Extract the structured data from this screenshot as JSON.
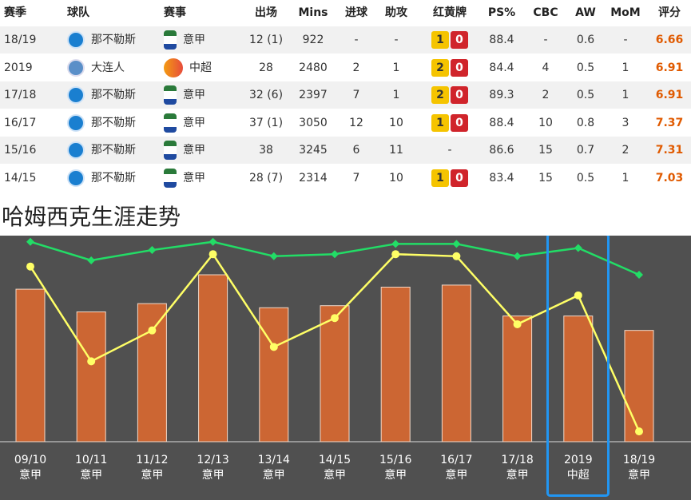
{
  "table": {
    "header": [
      "赛季",
      "球队",
      "赛事",
      "出场",
      "Mins",
      "进球",
      "助攻",
      "红黄牌",
      "PS%",
      "CBC",
      "AW",
      "MoM",
      "评分"
    ],
    "rows": [
      [
        "18/19",
        "那不勒斯",
        "意甲",
        "12 (1)",
        922,
        "-",
        "-",
        [
          1,
          0
        ],
        88.4,
        "-",
        0.6,
        "-",
        6.66
      ],
      [
        "2019",
        "大连人",
        "中超",
        28,
        2480,
        2,
        1,
        [
          2,
          0
        ],
        84.4,
        4,
        0.5,
        1,
        6.91
      ],
      [
        "17/18",
        "那不勒斯",
        "意甲",
        "32 (6)",
        2397,
        7,
        1,
        [
          2,
          0
        ],
        89.3,
        2,
        0.5,
        1,
        6.91
      ],
      [
        "16/17",
        "那不勒斯",
        "意甲",
        "37 (1)",
        3050,
        12,
        10,
        [
          1,
          0
        ],
        88.4,
        10,
        0.8,
        3,
        7.37
      ],
      [
        "15/16",
        "那不勒斯",
        "意甲",
        38,
        3245,
        6,
        11,
        "-",
        86.6,
        15,
        0.7,
        2,
        7.31
      ],
      [
        "14/15",
        "那不勒斯",
        "意甲",
        "28 (7)",
        2314,
        7,
        10,
        [
          1,
          0
        ],
        83.4,
        15,
        0.5,
        1,
        7.03
      ]
    ]
  },
  "chart_data": {
    "type": "bar-line",
    "title": "哈姆西克生涯走势",
    "categories": [
      "09/10",
      "10/11",
      "11/12",
      "12/13",
      "13/14",
      "14/15",
      "15/16",
      "16/17",
      "17/18",
      "2019",
      "18/19"
    ],
    "subcategories": [
      "意甲",
      "意甲",
      "意甲",
      "意甲",
      "意甲",
      "意甲",
      "意甲",
      "意甲",
      "意甲",
      "中超",
      "意甲"
    ],
    "ylim": [
      0,
      100
    ],
    "series": [
      {
        "type": "bar",
        "color": "#cc6633",
        "values": [
          74,
          63,
          67,
          81,
          65,
          66,
          75,
          76,
          61,
          61,
          54
        ]
      },
      {
        "type": "line",
        "color": "#ffff66",
        "values": [
          85,
          39,
          54,
          91,
          46,
          60,
          91,
          90,
          57,
          71,
          5
        ]
      },
      {
        "type": "line",
        "color": "#22dd66",
        "values": [
          97,
          88,
          93,
          97,
          90,
          91,
          96,
          96,
          90,
          94,
          81
        ]
      }
    ]
  }
}
